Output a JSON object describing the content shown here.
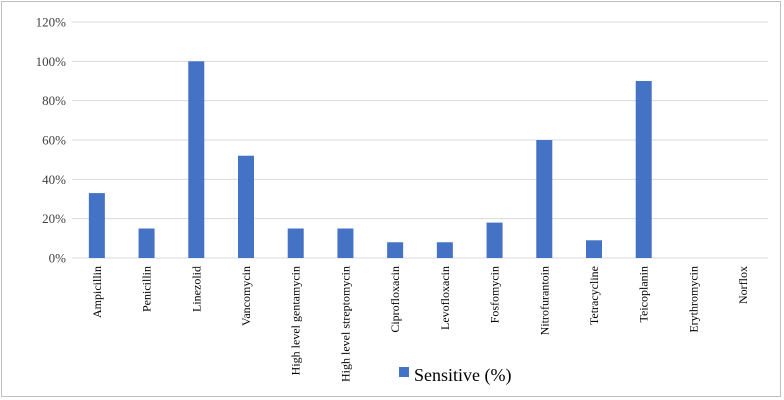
{
  "chart_data": {
    "type": "bar",
    "categories": [
      "Ampicillin",
      "Penicillin",
      "Linezolid",
      "Vancomycin",
      "High level gentamycin",
      "High level streptomycin",
      "Ciprofloxacin",
      "Levofloxacin",
      "Fosfomycin",
      "Nitrofurantoin",
      "Tetracycline",
      "Teicoplanin",
      "Erythromycin",
      "Norflox"
    ],
    "series": [
      {
        "name": "Sensitive (%)",
        "values": [
          33,
          15,
          100,
          52,
          15,
          15,
          8,
          8,
          18,
          60,
          9,
          90,
          0,
          0
        ]
      }
    ],
    "ylim": [
      0,
      120
    ],
    "yticks": [
      0,
      20,
      40,
      60,
      80,
      100,
      120
    ],
    "ytick_labels": [
      "0%",
      "20%",
      "40%",
      "60%",
      "80%",
      "100%",
      "120%"
    ],
    "grid": true,
    "legend_position": "bottom",
    "colors": {
      "bar": "#4472c4",
      "grid": "#d9d9d9"
    }
  }
}
